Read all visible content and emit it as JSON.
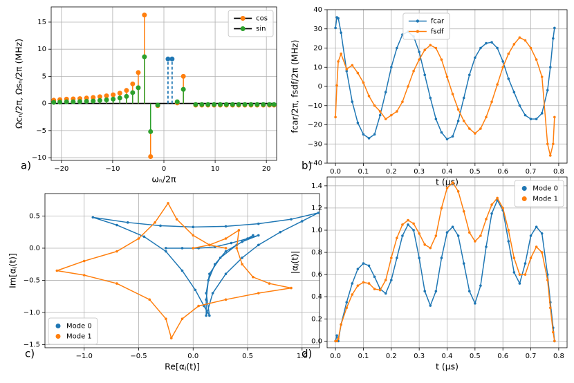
{
  "chart_data": [
    {
      "type": "stem",
      "panel_label": "a)",
      "xlabel": "ωₙ/2π",
      "ylabel": "Ωcₙ/2π,  Ωsₙ/2π (MHz)",
      "x": [
        -21.5,
        -20.3,
        -19.0,
        -17.7,
        -16.4,
        -15.1,
        -13.8,
        -12.5,
        -11.2,
        -9.9,
        -8.6,
        -7.3,
        -6.1,
        -5.0,
        -3.8,
        -2.6,
        -1.2,
        2.6,
        3.8,
        6.2,
        7.4,
        8.6,
        9.8,
        11.0,
        12.2,
        13.4,
        14.6,
        15.8,
        17.0,
        18.2,
        19.4,
        20.6,
        21.5
      ],
      "series": [
        {
          "name": "cos",
          "color": "#ff7f0e",
          "values": [
            0.6,
            0.7,
            0.8,
            0.85,
            0.9,
            1.0,
            1.1,
            1.25,
            1.4,
            1.6,
            1.9,
            2.4,
            3.6,
            5.7,
            16.3,
            -9.8,
            -0.4,
            0.1,
            5.0,
            -0.3,
            -0.3,
            -0.3,
            -0.3,
            -0.3,
            -0.3,
            -0.3,
            -0.3,
            -0.3,
            -0.3,
            -0.3,
            -0.3,
            -0.3,
            -0.3
          ]
        },
        {
          "name": "sin",
          "color": "#2ca02c",
          "values": [
            0.2,
            0.25,
            0.3,
            0.3,
            0.35,
            0.4,
            0.45,
            0.55,
            0.65,
            0.8,
            1.0,
            1.3,
            2.0,
            2.9,
            8.6,
            -5.2,
            -0.3,
            0.3,
            2.6,
            -0.2,
            -0.2,
            -0.2,
            -0.2,
            -0.2,
            -0.2,
            -0.2,
            -0.2,
            -0.2,
            -0.2,
            -0.2,
            -0.2,
            -0.2,
            -0.2
          ]
        }
      ],
      "carrier_lines": {
        "color": "#1f77b4",
        "x": [
          0.8,
          1.6
        ],
        "values": [
          8.2,
          8.2
        ]
      },
      "xlim": [
        -22,
        22
      ],
      "ylim": [
        -10.5,
        17.8
      ],
      "xticks": [
        {
          "value": -20,
          "label": "−20"
        },
        {
          "value": -10,
          "label": "−10"
        },
        0,
        10,
        20
      ],
      "yticks": [
        {
          "value": -10,
          "label": "−10"
        },
        {
          "value": -5,
          "label": "−5"
        },
        0,
        5,
        10,
        15
      ],
      "grid": true,
      "legend": "upper right"
    },
    {
      "type": "line",
      "panel_label": "b)",
      "xlabel": "t (μs)",
      "ylabel": "fcar/2π,  fsdf/2π (MHz)",
      "x": [
        0,
        0.005,
        0.01,
        0.02,
        0.04,
        0.06,
        0.08,
        0.1,
        0.12,
        0.14,
        0.16,
        0.18,
        0.2,
        0.22,
        0.24,
        0.26,
        0.28,
        0.3,
        0.32,
        0.34,
        0.36,
        0.38,
        0.4,
        0.42,
        0.44,
        0.46,
        0.48,
        0.5,
        0.52,
        0.54,
        0.56,
        0.58,
        0.6,
        0.62,
        0.64,
        0.66,
        0.68,
        0.7,
        0.72,
        0.74,
        0.76,
        0.77,
        0.78,
        0.785
      ],
      "series": [
        {
          "name": "fcar",
          "color": "#1f77b4",
          "values": [
            30.5,
            36,
            35.5,
            28,
            8,
            -8,
            -19,
            -25,
            -27,
            -25,
            -15,
            -3,
            10,
            20,
            27,
            28.5,
            26,
            18,
            6,
            -6,
            -17,
            -24,
            -27.5,
            -26,
            -18,
            -6,
            6,
            15,
            20,
            22.5,
            23,
            20,
            13,
            4,
            -3,
            -10,
            -15,
            -17,
            -17,
            -14,
            -2,
            10,
            25,
            30.5
          ]
        },
        {
          "name": "fsdf",
          "color": "#ff7f0e",
          "values": [
            -16,
            0.5,
            13,
            17,
            9,
            11,
            7,
            2,
            -5,
            -10,
            -13,
            -17,
            -15,
            -13,
            -8,
            0,
            8,
            14,
            19,
            21.5,
            20,
            14,
            5,
            -4,
            -12,
            -18,
            -22,
            -24.5,
            -22,
            -16,
            -8,
            1,
            10,
            17,
            22,
            25.5,
            24,
            20,
            14,
            5,
            -30,
            -36,
            -30,
            -16
          ]
        }
      ],
      "xlim": [
        -0.03,
        0.83
      ],
      "ylim": [
        -40,
        40
      ],
      "xticks": [
        {
          "value": 0,
          "label": "0.0"
        },
        0.1,
        0.2,
        0.3,
        0.4,
        0.5,
        0.6,
        0.7,
        0.8
      ],
      "yticks": [
        {
          "value": -40,
          "label": "−40"
        },
        {
          "value": -30,
          "label": "−30"
        },
        {
          "value": -20,
          "label": "−20"
        },
        {
          "value": -10,
          "label": "−10"
        },
        0,
        10,
        20,
        30,
        40
      ],
      "grid": true,
      "legend": "upper center",
      "line": true
    },
    {
      "type": "line",
      "panel_label": "c)",
      "xlabel": "Re[αⱼ(t)]",
      "ylabel": "Im[αⱼ(t)]",
      "series": [
        {
          "name": "Mode 0",
          "color": "#1f77b4",
          "x": [
            -0.25,
            -0.1,
            0.05,
            0.2,
            0.35,
            0.5,
            0.6,
            0.45,
            0.3,
            0.2,
            0.14,
            0.12,
            0.12,
            0.18,
            0.3,
            0.45,
            0.6,
            0.8,
            1.0,
            1.15,
            0.9,
            0.6,
            0.3,
            0.0,
            -0.3,
            -0.6,
            -0.92,
            -0.7,
            -0.45,
            -0.25,
            -0.1,
            0.02,
            0.1,
            0.15,
            0.12,
            0.15,
            0.25,
            0.4,
            0.55
          ],
          "values": [
            0,
            0,
            0,
            0.02,
            0.08,
            0.15,
            0.2,
            0.1,
            -0.05,
            -0.25,
            -0.5,
            -0.8,
            -1.05,
            -0.7,
            -0.4,
            -0.15,
            0.05,
            0.25,
            0.42,
            0.55,
            0.45,
            0.38,
            0.34,
            0.33,
            0.35,
            0.4,
            0.48,
            0.36,
            0.18,
            -0.05,
            -0.35,
            -0.65,
            -0.9,
            -1.05,
            -0.7,
            -0.4,
            -0.15,
            0.05,
            0.2
          ]
        },
        {
          "name": "Mode 1",
          "color": "#ff7f0e",
          "x": [
            0,
            0.15,
            0.3,
            0.42,
            0.4,
            0.45,
            0.55,
            0.7,
            0.9,
            0.6,
            0.3,
            0.05,
            -0.1,
            -0.2,
            -0.25,
            -0.4,
            -0.7,
            -1.0,
            -1.25,
            -1.0,
            -0.7,
            -0.5,
            -0.35,
            -0.23,
            -0.15,
            0.0,
            0.15,
            0.3
          ],
          "values": [
            0,
            0.05,
            0.15,
            0.28,
            0.0,
            -0.25,
            -0.45,
            -0.55,
            -0.62,
            -0.7,
            -0.8,
            -0.9,
            -1.1,
            -1.4,
            -1.1,
            -0.8,
            -0.55,
            -0.42,
            -0.35,
            -0.2,
            -0.05,
            0.15,
            0.4,
            0.7,
            0.45,
            0.2,
            0.05,
            0.0
          ]
        }
      ],
      "xlim": [
        -1.36,
        1.16
      ],
      "ylim": [
        -1.55,
        0.85
      ],
      "xticks": [
        {
          "value": -1,
          "label": "−1.0"
        },
        {
          "value": -0.5,
          "label": "−0.5"
        },
        {
          "value": 0,
          "label": "0.0"
        },
        0.5,
        {
          "value": 1,
          "label": "1.0"
        }
      ],
      "yticks": [
        {
          "value": -1.5,
          "label": "−1.5"
        },
        {
          "value": -1,
          "label": "−1.0"
        },
        {
          "value": -0.5,
          "label": "−0.5"
        },
        {
          "value": 0,
          "label": "0.0"
        },
        0.5
      ],
      "grid": true,
      "legend": "lower left",
      "line": false
    },
    {
      "type": "line",
      "panel_label": "d)",
      "xlabel": "t (μs)",
      "ylabel": "|αⱼ(t)|",
      "x": [
        0,
        0.005,
        0.01,
        0.02,
        0.04,
        0.06,
        0.08,
        0.1,
        0.12,
        0.14,
        0.16,
        0.18,
        0.2,
        0.22,
        0.24,
        0.26,
        0.28,
        0.3,
        0.32,
        0.34,
        0.36,
        0.38,
        0.4,
        0.42,
        0.44,
        0.46,
        0.48,
        0.5,
        0.52,
        0.54,
        0.56,
        0.58,
        0.6,
        0.62,
        0.64,
        0.66,
        0.68,
        0.7,
        0.72,
        0.74,
        0.76,
        0.77,
        0.78,
        0.785
      ],
      "series": [
        {
          "name": "Mode 0",
          "color": "#1f77b4",
          "values": [
            0,
            0.05,
            0,
            0.15,
            0.35,
            0.52,
            0.65,
            0.7,
            0.68,
            0.58,
            0.47,
            0.43,
            0.55,
            0.75,
            0.95,
            1.05,
            1.0,
            0.75,
            0.45,
            0.32,
            0.45,
            0.75,
            0.98,
            1.03,
            0.95,
            0.7,
            0.45,
            0.34,
            0.5,
            0.85,
            1.15,
            1.27,
            1.18,
            0.9,
            0.62,
            0.52,
            0.7,
            0.95,
            1.03,
            0.97,
            0.6,
            0.35,
            0.12,
            0
          ]
        },
        {
          "name": "Mode 1",
          "color": "#ff7f0e",
          "values": [
            0,
            0,
            0.02,
            0.15,
            0.3,
            0.42,
            0.5,
            0.53,
            0.52,
            0.47,
            0.46,
            0.55,
            0.75,
            0.93,
            1.05,
            1.09,
            1.06,
            0.97,
            0.87,
            0.84,
            0.95,
            1.2,
            1.38,
            1.43,
            1.35,
            1.17,
            0.98,
            0.9,
            0.95,
            1.1,
            1.23,
            1.29,
            1.2,
            1.0,
            0.75,
            0.6,
            0.6,
            0.75,
            0.85,
            0.8,
            0.55,
            0.3,
            0.08,
            0
          ]
        }
      ],
      "xlim": [
        -0.03,
        0.83
      ],
      "ylim": [
        -0.06,
        1.48
      ],
      "xticks": [
        {
          "value": 0,
          "label": "0.0"
        },
        0.1,
        0.2,
        0.3,
        0.4,
        0.5,
        0.6,
        0.7,
        0.8
      ],
      "yticks": [
        {
          "value": 0,
          "label": "0.0"
        },
        0.2,
        0.4,
        0.6,
        0.8,
        {
          "value": 1,
          "label": "1.0"
        },
        1.2,
        1.4
      ],
      "grid": true,
      "legend": "upper right",
      "line": false
    }
  ]
}
